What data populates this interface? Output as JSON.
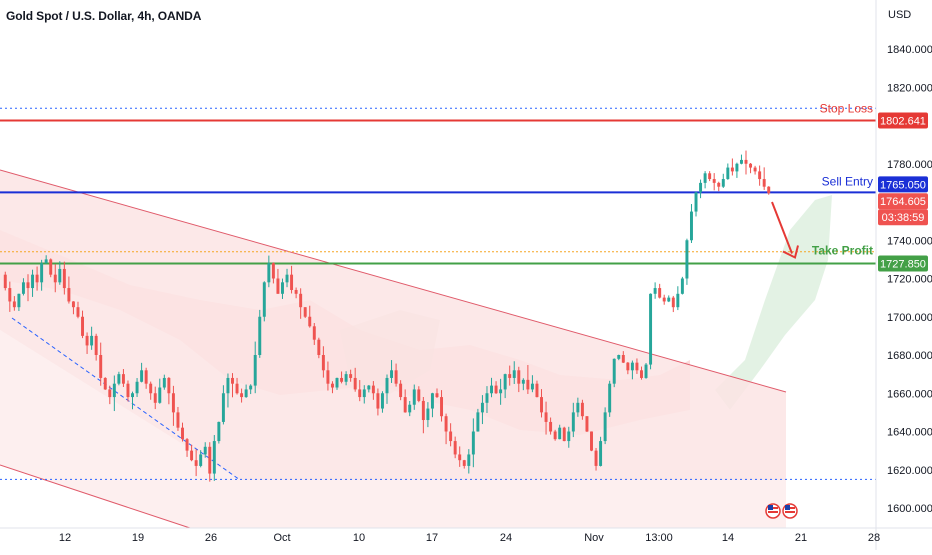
{
  "title": "Gold Spot / U.S. Dollar, 4h, OANDA",
  "currency": "USD",
  "colors": {
    "up": "#26a69a",
    "down": "#ef5350",
    "stop_loss": "#e53935",
    "sell_entry": "#1a2fd6",
    "take_profit": "#43a047",
    "channel_fill": "#fbe4e4",
    "channel_line": "#e05a6a",
    "support": "#2962ff",
    "arrow": "#e53935"
  },
  "chart_data": {
    "type": "candlestick",
    "ylim": [
      1592,
      1860
    ],
    "y_ticks": [
      "1840.000",
      "1820.000",
      "1780.000",
      "1740.000",
      "1720.000",
      "1700.000",
      "1680.000",
      "1660.000",
      "1640.000",
      "1620.000",
      "1600.000"
    ],
    "x_ticks": [
      "12",
      "19",
      "26",
      "Oct",
      "10",
      "17",
      "24",
      "Nov",
      "13:00",
      "14",
      "21",
      "28"
    ],
    "levels": {
      "stop_loss": {
        "label": "Stop Loss",
        "value": "1802.641",
        "y": 1802.641
      },
      "sell_entry": {
        "label": "Sell Entry",
        "value": "1765.050",
        "y": 1765.05
      },
      "take_profit": {
        "label": "Take Profit",
        "value": "1727.850",
        "y": 1727.85
      },
      "current_price": {
        "value": "1764.605",
        "countdown": "03:38:59",
        "y": 1764.605
      },
      "upper_dotted": 1809,
      "lower_dotted": 1615,
      "orange_dotted": 1734
    },
    "price_path": [
      1722,
      1715,
      1708,
      1705,
      1712,
      1718,
      1715,
      1722,
      1718,
      1728,
      1730,
      1722,
      1718,
      1725,
      1715,
      1708,
      1705,
      1700,
      1690,
      1685,
      1690,
      1680,
      1668,
      1662,
      1658,
      1665,
      1670,
      1665,
      1658,
      1660,
      1666,
      1672,
      1665,
      1660,
      1655,
      1663,
      1668,
      1660,
      1650,
      1642,
      1636,
      1630,
      1625,
      1622,
      1628,
      1632,
      1618,
      1635,
      1645,
      1660,
      1668,
      1665,
      1660,
      1658,
      1662,
      1664,
      1680,
      1700,
      1718,
      1728,
      1720,
      1712,
      1718,
      1722,
      1714,
      1712,
      1705,
      1700,
      1695,
      1688,
      1680,
      1672,
      1665,
      1663,
      1668,
      1666,
      1670,
      1668,
      1662,
      1658,
      1662,
      1664,
      1660,
      1652,
      1660,
      1668,
      1672,
      1665,
      1658,
      1650,
      1654,
      1662,
      1656,
      1646,
      1652,
      1660,
      1658,
      1648,
      1640,
      1635,
      1628,
      1625,
      1622,
      1628,
      1640,
      1650,
      1655,
      1660,
      1664,
      1660,
      1662,
      1670,
      1668,
      1672,
      1665,
      1667,
      1662,
      1665,
      1658,
      1650,
      1645,
      1640,
      1636,
      1642,
      1635,
      1640,
      1650,
      1655,
      1648,
      1640,
      1630,
      1622,
      1635,
      1650,
      1665,
      1678,
      1680,
      1676,
      1672,
      1676,
      1672,
      1668,
      1675,
      1712,
      1715,
      1710,
      1708,
      1710,
      1705,
      1712,
      1720,
      1740,
      1755,
      1765,
      1770,
      1775,
      1772,
      1770,
      1768,
      1772,
      1778,
      1776,
      1780,
      1782,
      1780,
      1778,
      1776,
      1772,
      1768,
      1764.6
    ]
  }
}
